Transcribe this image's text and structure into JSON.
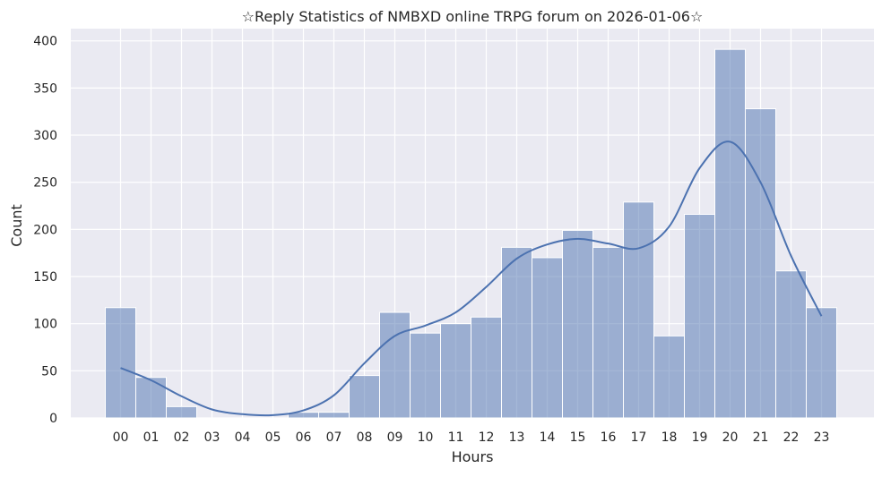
{
  "chart_data": {
    "type": "bar",
    "title": "☆Reply Statistics of NMBXD online TRPG forum on 2026-01-06☆",
    "xlabel": "Hours",
    "ylabel": "Count",
    "categories": [
      "00",
      "01",
      "02",
      "03",
      "04",
      "05",
      "06",
      "07",
      "08",
      "09",
      "10",
      "11",
      "12",
      "13",
      "14",
      "15",
      "16",
      "17",
      "18",
      "19",
      "20",
      "21",
      "22",
      "23"
    ],
    "values": [
      117,
      43,
      12,
      0,
      0,
      0,
      6,
      6,
      45,
      112,
      90,
      100,
      107,
      181,
      170,
      199,
      181,
      229,
      87,
      216,
      391,
      328,
      156,
      117
    ],
    "kde": [
      53,
      40,
      23,
      9,
      4,
      3,
      8,
      24,
      58,
      87,
      98,
      112,
      139,
      169,
      184,
      190,
      185,
      180,
      203,
      265,
      293,
      250,
      172,
      108
    ],
    "ylim": [
      0,
      413
    ],
    "yticks": [
      0,
      50,
      100,
      150,
      200,
      250,
      300,
      350,
      400
    ],
    "grid": true,
    "colors": {
      "background": "#eaeaf2",
      "bar": "#4c72b0",
      "line": "#4c72b0",
      "grid": "#ffffff"
    }
  }
}
